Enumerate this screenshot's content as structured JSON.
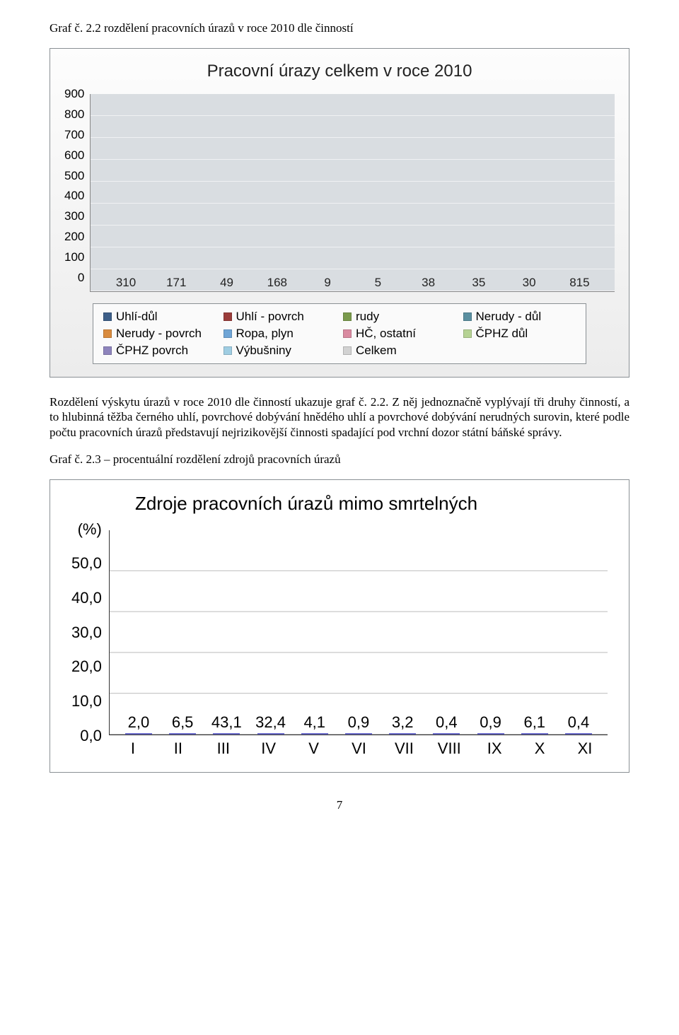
{
  "heading1": "Graf č. 2.2 rozdělení pracovních úrazů v roce 2010 dle činností",
  "chart1": {
    "type": "bar",
    "title": "Pracovní úrazy celkem v roce 2010",
    "ylim": [
      0,
      900
    ],
    "ytick_step": 100,
    "yticks": [
      "900",
      "800",
      "700",
      "600",
      "500",
      "400",
      "300",
      "200",
      "100",
      "0"
    ],
    "plot_area_bg": "#d9dde1",
    "value_label_fontsize": 17,
    "series": [
      {
        "label": "Uhlí-důl",
        "value": 310,
        "color": "#3d5f88"
      },
      {
        "label": "Uhlí - povrch",
        "value": 171,
        "color": "#9a3c3a"
      },
      {
        "label": "rudy",
        "value": 49,
        "color": "#7a9a4c"
      },
      {
        "label": "Nerudy - důl",
        "value": 168,
        "color": "#5a8fa0"
      },
      {
        "label": "Nerudy - povrch",
        "value": 9,
        "color": "#d98b3e"
      },
      {
        "label": "Ropa, plyn",
        "value": 5,
        "color": "#6fa5d6"
      },
      {
        "label": "HČ, ostatní",
        "value": 38,
        "color": "#d98aa0"
      },
      {
        "label": "ČPHZ důl",
        "value": 35,
        "color": "#b5d293"
      },
      {
        "label": "ČPHZ povrch",
        "value": 30,
        "color": "#8e84bc"
      },
      {
        "label": "Výbušniny",
        "value": 815,
        "color": "#9fcde2"
      },
      {
        "label": "Celkem",
        "value": null,
        "color": "#d2d2d2"
      }
    ],
    "legend_border": "#8a9094"
  },
  "paragraph": "Rozdělení výskytu úrazů v roce 2010 dle činností ukazuje graf č. 2.2. Z něj jednoznačně vyplývají tři druhy činností, a to hlubinná těžba černého uhlí, povrchové dobývání hnědého uhlí a povrchové dobývání nerudných surovin, které podle počtu pracovních úrazů představují nejrizikovější činnosti spadající pod vrchní dozor státní báňské správy.",
  "heading2": "Graf č. 2.3 – procentuální rozdělení zdrojů pracovních úrazů",
  "chart2": {
    "type": "bar",
    "title": "Zdroje pracovních úrazů mimo smrtelných",
    "y_unit_label": "(%)",
    "ylim": [
      0,
      50
    ],
    "ytick_step": 10,
    "yticks": [
      "50,0",
      "40,0",
      "30,0",
      "20,0",
      "10,0",
      "0,0"
    ],
    "bar_fill_top": "#d6d6f8",
    "bar_fill_bottom": "#9898e8",
    "bar_border": "#6a6ac8",
    "grid_color": "#bbbbbb",
    "value_label_fontsize": 22,
    "categories": [
      "I",
      "II",
      "III",
      "IV",
      "V",
      "VI",
      "VII",
      "VIII",
      "IX",
      "X",
      "XI"
    ],
    "values": [
      "2,0",
      "6,5",
      "43,1",
      "32,4",
      "4,1",
      "0,9",
      "3,2",
      "0,4",
      "0,9",
      "6,1",
      "0,4"
    ],
    "values_num": [
      2.0,
      6.5,
      43.1,
      32.4,
      4.1,
      0.9,
      3.2,
      0.4,
      0.9,
      6.1,
      0.4
    ]
  },
  "page_number": "7"
}
